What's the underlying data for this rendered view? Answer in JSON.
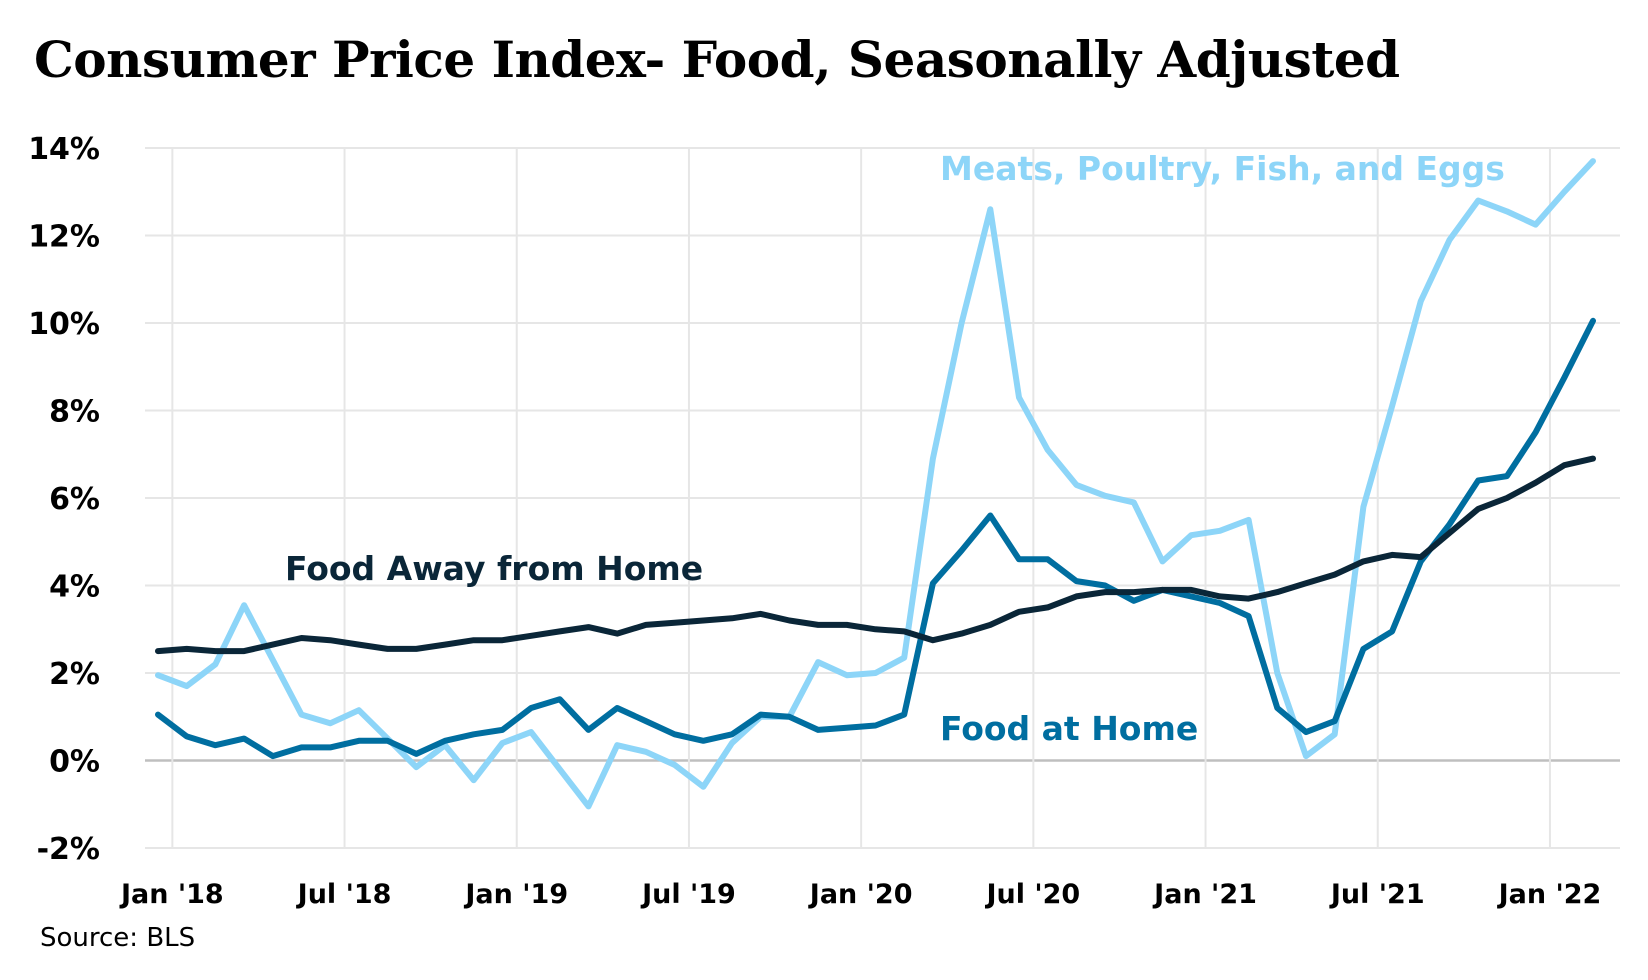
{
  "page": {
    "title": "Consumer Price Index- Food, Seasonally Adjusted",
    "source": "Source: BLS"
  },
  "colors": {
    "meats": "#8dd5f8",
    "home": "#006ea0",
    "away": "#0a2638",
    "grid": "#e6e6e6",
    "zero_axis": "#bfbfbf"
  },
  "chart_data": {
    "type": "line",
    "title": "Consumer Price Index- Food, Seasonally Adjusted",
    "x_start": "2018-01",
    "x_labels": [
      "Jan '18",
      "Jul '18",
      "Jan '19",
      "Jul '19",
      "Jan '20",
      "Jul '20",
      "Jan '21",
      "Jul '21",
      "Jan '22"
    ],
    "y_labels": [
      "14%",
      "12%",
      "10%",
      "8%",
      "6%",
      "4%",
      "2%",
      "0%",
      "-2%"
    ],
    "ylim": [
      -2,
      14
    ],
    "grid": true,
    "legend": "inline labels",
    "series": [
      {
        "name": "Meats, Poultry, Fish, and Eggs",
        "color_key": "meats",
        "values": [
          1.95,
          1.7,
          2.2,
          3.55,
          2.3,
          1.05,
          0.85,
          1.15,
          0.5,
          -0.15,
          0.35,
          -0.45,
          0.4,
          0.65,
          -0.2,
          -1.05,
          0.35,
          0.2,
          -0.1,
          -0.6,
          0.4,
          1.0,
          1.0,
          2.25,
          1.95,
          2.0,
          2.35,
          6.9,
          10.0,
          12.6,
          8.3,
          7.1,
          6.3,
          6.05,
          5.9,
          4.55,
          5.15,
          5.25,
          5.5,
          2.0,
          0.1,
          0.6,
          5.8,
          8.1,
          10.5,
          11.9,
          12.8,
          12.55,
          12.25,
          13.0,
          13.7
        ]
      },
      {
        "name": "Food at Home",
        "color_key": "home",
        "values": [
          1.05,
          0.55,
          0.35,
          0.5,
          0.1,
          0.3,
          0.3,
          0.45,
          0.45,
          0.15,
          0.45,
          0.6,
          0.7,
          1.2,
          1.4,
          0.7,
          1.2,
          0.9,
          0.6,
          0.45,
          0.6,
          1.05,
          1.0,
          0.7,
          0.75,
          0.8,
          1.05,
          4.05,
          4.8,
          5.6,
          4.6,
          4.6,
          4.1,
          4.0,
          3.65,
          3.9,
          3.75,
          3.6,
          3.3,
          1.2,
          0.65,
          0.9,
          2.55,
          2.95,
          4.55,
          5.4,
          6.4,
          6.5,
          7.5,
          8.75,
          10.05
        ]
      },
      {
        "name": "Food Away from Home",
        "color_key": "away",
        "values": [
          2.5,
          2.55,
          2.5,
          2.5,
          2.65,
          2.8,
          2.75,
          2.65,
          2.55,
          2.55,
          2.65,
          2.75,
          2.75,
          2.85,
          2.95,
          3.05,
          2.9,
          3.1,
          3.15,
          3.2,
          3.25,
          3.35,
          3.2,
          3.1,
          3.1,
          3.0,
          2.95,
          2.75,
          2.9,
          3.1,
          3.4,
          3.5,
          3.75,
          3.85,
          3.85,
          3.9,
          3.9,
          3.75,
          3.7,
          3.85,
          4.05,
          4.25,
          4.55,
          4.7,
          4.65,
          5.2,
          5.75,
          6.0,
          6.35,
          6.75,
          6.9
        ]
      }
    ]
  }
}
